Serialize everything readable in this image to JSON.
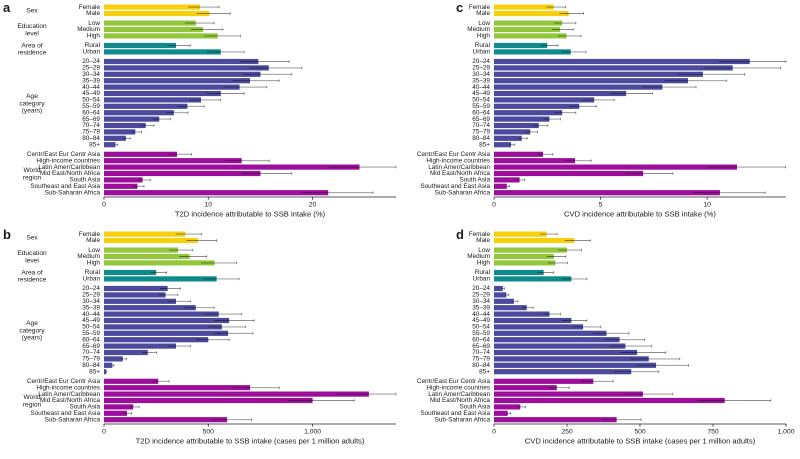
{
  "figure": {
    "description": "Four-panel horizontal bar figure of T2D and CVD incidence attributable to SSB intake, stratified by sex, education level, area of residence, age category and world region, with 95% CI whiskers",
    "background": "#ffffff",
    "text_color": "#1a1a1a",
    "axis_color": "#222222",
    "error_bar_color": "rgba(0,0,0,0.45)"
  },
  "groups": [
    {
      "name": "Sex",
      "label_lines": [
        "Sex"
      ],
      "color": "#F6CF0D",
      "categories": [
        "Female",
        "Male"
      ]
    },
    {
      "name": "Education level",
      "label_lines": [
        "Education",
        "level"
      ],
      "color": "#93C83D",
      "categories": [
        "Low",
        "Medium",
        "High"
      ]
    },
    {
      "name": "Area of residence",
      "label_lines": [
        "Area of",
        "residence"
      ],
      "color": "#108B8B",
      "categories": [
        "Rural",
        "Urban"
      ]
    },
    {
      "name": "Age category (years)",
      "label_lines": [
        "Age",
        "category",
        "(years)"
      ],
      "color": "#4C4A9D",
      "categories": [
        "20–24",
        "25–29",
        "30–34",
        "35–39",
        "40–44",
        "45–49",
        "50–54",
        "55–59",
        "60–64",
        "65–69",
        "70–74",
        "75–79",
        "80–84",
        "85+"
      ]
    },
    {
      "name": "World region",
      "label_lines": [
        "World",
        "region"
      ],
      "color": "#9C0F9B",
      "categories": [
        "Centr/East Eur Centr Asia",
        "High-income countries",
        "Latin Amer/Caribbean",
        "Mid East/North Africa",
        "South Asia",
        "Southeast and East Asia",
        "Sub-Saharan Africa"
      ]
    }
  ],
  "ci_factor": {
    "lo": 0.88,
    "hi": 1.2
  },
  "chart_data": [
    {
      "id": "a",
      "panel_letter": "a",
      "type": "bar",
      "orientation": "horizontal",
      "xlabel": "T2D incidence attributable to SSB intake (%)",
      "xmax": 28,
      "show_group_labels": true,
      "ticks": [
        {
          "v": 0,
          "t": "0"
        },
        {
          "v": 10,
          "t": "10"
        },
        {
          "v": 20,
          "t": "20"
        }
      ],
      "values": [
        9.2,
        10.1,
        8.8,
        9.5,
        10.9,
        6.9,
        11.2,
        14.8,
        15.8,
        15.0,
        14.0,
        13.0,
        11.2,
        9.3,
        8.0,
        6.7,
        5.3,
        4.0,
        3.0,
        2.1,
        1.1,
        7.0,
        13.2,
        24.5,
        15.0,
        3.7,
        3.2,
        21.5
      ]
    },
    {
      "id": "c",
      "panel_letter": "c",
      "type": "bar",
      "orientation": "horizontal",
      "xlabel": "CVD incidence attributable to SSB intake (%)",
      "xmax": 13.7,
      "show_group_labels": false,
      "ticks": [
        {
          "v": 0,
          "t": "0"
        },
        {
          "v": 5,
          "t": "5"
        },
        {
          "v": 10,
          "t": "10"
        }
      ],
      "values": [
        2.8,
        3.5,
        3.2,
        3.1,
        3.4,
        2.5,
        3.6,
        12.0,
        11.2,
        9.8,
        9.1,
        7.9,
        6.2,
        4.7,
        4.0,
        3.2,
        2.6,
        2.1,
        1.7,
        1.3,
        0.8,
        2.3,
        3.8,
        11.4,
        7.0,
        1.2,
        0.6,
        10.6
      ]
    },
    {
      "id": "b",
      "panel_letter": "b",
      "type": "bar",
      "orientation": "horizontal",
      "xlabel": "T2D incidence attributable to SSB intake (cases per 1 million adults)",
      "xmax": 1400,
      "show_group_labels": true,
      "ticks": [
        {
          "v": 0,
          "t": "0"
        },
        {
          "v": 500,
          "t": "500"
        },
        {
          "v": 1000,
          "t": "1,000"
        }
      ],
      "values": [
        390,
        450,
        355,
        410,
        530,
        250,
        540,
        305,
        295,
        345,
        440,
        550,
        600,
        565,
        595,
        500,
        345,
        210,
        90,
        40,
        10,
        260,
        700,
        1270,
        1000,
        140,
        110,
        590
      ]
    },
    {
      "id": "d",
      "panel_letter": "d",
      "type": "bar",
      "orientation": "horizontal",
      "xlabel": "CVD incidence attributable to SSB intake (cases per 1 million adults)",
      "xmax": 1000,
      "show_group_labels": false,
      "ticks": [
        {
          "v": 0,
          "t": "0"
        },
        {
          "v": 250,
          "t": "250"
        },
        {
          "v": 500,
          "t": "500"
        },
        {
          "v": 750,
          "t": "750"
        },
        {
          "v": 1000,
          "t": "1,000"
        }
      ],
      "values": [
        180,
        275,
        250,
        205,
        210,
        170,
        265,
        30,
        42,
        68,
        112,
        190,
        265,
        305,
        385,
        430,
        450,
        490,
        530,
        555,
        470,
        340,
        215,
        510,
        790,
        90,
        47,
        420
      ]
    }
  ],
  "panel_order": [
    "a",
    "c",
    "b",
    "d"
  ]
}
